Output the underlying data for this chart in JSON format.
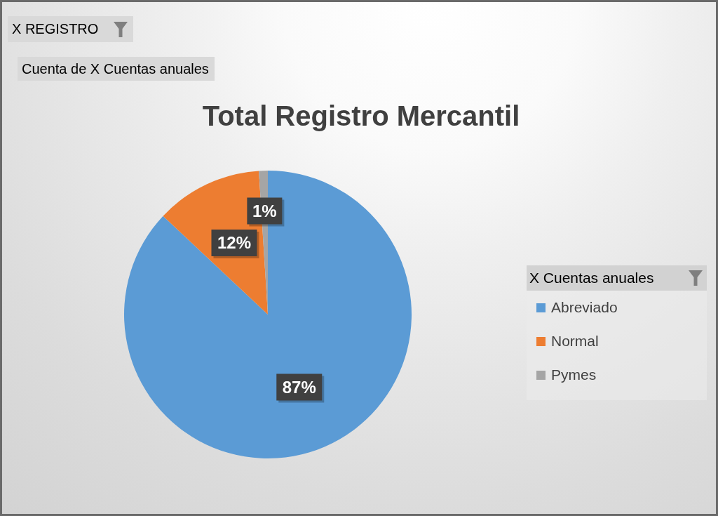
{
  "chart_data": {
    "type": "pie",
    "title": "Total Registro Mercantil",
    "categories": [
      "Abreviado",
      "Normal",
      "Pymes"
    ],
    "values": [
      87,
      12,
      1
    ],
    "colors": [
      "#5b9bd5",
      "#ed7d31",
      "#a5a5a5"
    ],
    "value_labels": [
      "87%",
      "12%",
      "1%"
    ],
    "legend": "right",
    "legend_title": "X Cuentas anuales",
    "annotations": [
      "X REGISTRO",
      "Cuenta de X Cuentas anuales"
    ]
  }
}
